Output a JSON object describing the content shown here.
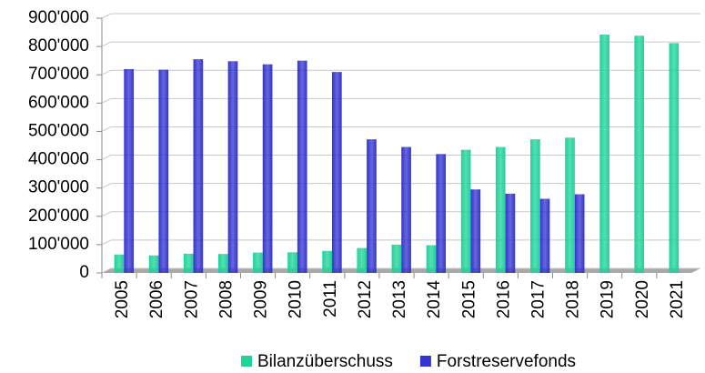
{
  "chart_data": {
    "type": "bar",
    "categories": [
      "2005",
      "2006",
      "2007",
      "2008",
      "2009",
      "2010",
      "2011",
      "2012",
      "2013",
      "2014",
      "2015",
      "2016",
      "2017",
      "2018",
      "2019",
      "2020",
      "2021"
    ],
    "series": [
      {
        "name": "Bilanzüberschuss",
        "color": "#1fd29a",
        "values": [
          65000,
          62000,
          68000,
          67000,
          72000,
          73000,
          78000,
          88000,
          100000,
          98000,
          435000,
          445000,
          472000,
          478000,
          842000,
          838000,
          812000
        ]
      },
      {
        "name": "Forstreservefonds",
        "color": "#3434d0",
        "values": [
          720000,
          718000,
          755000,
          748000,
          737000,
          750000,
          710000,
          472000,
          445000,
          420000,
          295000,
          280000,
          262000,
          278000,
          null,
          null,
          null
        ]
      }
    ],
    "ylim": [
      0,
      900000
    ],
    "yticks": [
      0,
      {
        "value": 100000,
        "label": "100'000"
      },
      {
        "value": 200000,
        "label": "200'000"
      },
      {
        "value": 300000,
        "label": "300'000"
      },
      {
        "value": 400000,
        "label": "400'000"
      },
      {
        "value": 500000,
        "label": "500'000"
      },
      {
        "value": 600000,
        "label": "600'000"
      },
      {
        "value": 700000,
        "label": "700'000"
      },
      {
        "value": 800000,
        "label": "800'000"
      },
      {
        "value": 900000,
        "label": "900'000"
      }
    ],
    "grid": true,
    "legend": "bottom"
  }
}
